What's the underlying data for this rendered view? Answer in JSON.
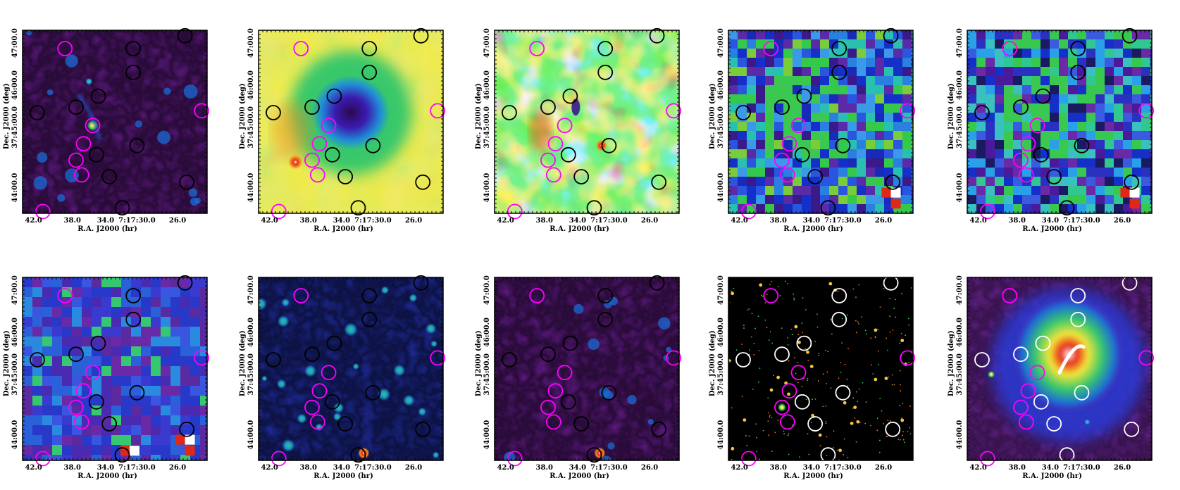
{
  "axes": {
    "xlabel": "R.A. J2000 (hr)",
    "ylabel": "Dec. J2000 (deg)",
    "x_ticks": [
      "42.0",
      "38.0",
      "34.0",
      "7:17:30.0",
      "26.0"
    ],
    "y_ticks": [
      "37:45:00.0",
      "44:00.0",
      "45:00.0",
      "46:00.0",
      "47:00.0"
    ]
  },
  "panels": [
    {
      "id": "p1",
      "style": "purple",
      "texture": "smooth",
      "region_color": "#000000"
    },
    {
      "id": "p2",
      "style": "heat",
      "texture": "blob",
      "region_color": "#000000"
    },
    {
      "id": "p3",
      "style": "rainbow",
      "texture": "noise",
      "region_color": "#000000"
    },
    {
      "id": "p4",
      "style": "pixel",
      "texture": "pix",
      "region_color": "#000000"
    },
    {
      "id": "p5",
      "style": "pixel2",
      "texture": "pix",
      "region_color": "#000000"
    },
    {
      "id": "p6",
      "style": "pixel3",
      "texture": "pix",
      "region_color": "#000000"
    },
    {
      "id": "p7",
      "style": "blue",
      "texture": "smooth",
      "region_color": "#000000"
    },
    {
      "id": "p8",
      "style": "purple2",
      "texture": "smooth",
      "region_color": "#000000"
    },
    {
      "id": "p9",
      "style": "black",
      "texture": "stars",
      "region_color": "#ffffff"
    },
    {
      "id": "p10",
      "style": "xray",
      "texture": "xray",
      "region_color": "#ffffff"
    }
  ],
  "colors": {
    "magenta_regions": "#ff00ff",
    "purple_bg": "#7a1fa8",
    "green": "#34c94a",
    "yellow": "#f2e63a",
    "blue": "#1530c8",
    "red": "#e02818"
  }
}
